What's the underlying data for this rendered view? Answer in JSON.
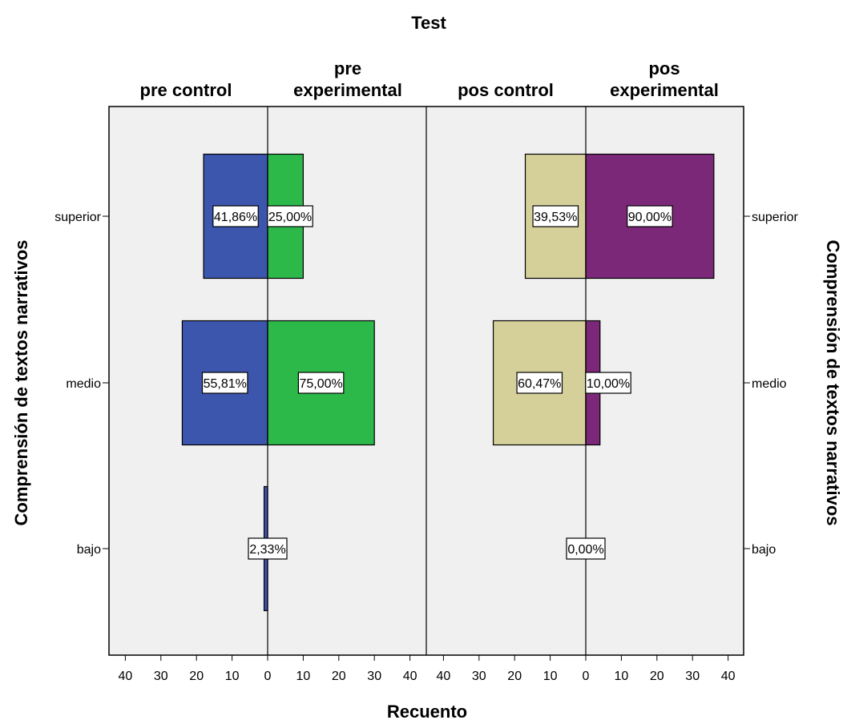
{
  "chart_data": {
    "type": "bar",
    "title": "Test",
    "xlabel": "Recuento",
    "ylabel": "Comprensión de textos narrativos",
    "categories": [
      "superior",
      "medio",
      "bajo"
    ],
    "xlim": [
      0,
      40
    ],
    "xticks": [
      "40",
      "30",
      "20",
      "10",
      "0",
      "10",
      "20",
      "30",
      "40"
    ],
    "grid": false,
    "panels": [
      {
        "left": {
          "name": "pre control",
          "color": "#3c55ad",
          "values": [
            18,
            24,
            1
          ],
          "labels": [
            "41,86%",
            "55,81%",
            "2,33%"
          ]
        },
        "right": {
          "name": "pre experimental",
          "color": "#2db84a",
          "values": [
            10,
            30,
            0
          ],
          "labels": [
            "25,00%",
            "75,00%",
            ""
          ]
        }
      },
      {
        "left": {
          "name": "pos control",
          "color": "#d5d09a",
          "values": [
            17,
            26,
            0
          ],
          "labels": [
            "39,53%",
            "60,47%",
            "0,00%"
          ]
        },
        "right": {
          "name": "pos experimental",
          "color": "#7b2879",
          "values": [
            36,
            4,
            0
          ],
          "labels": [
            "90,00%",
            "10,00%",
            ""
          ]
        }
      }
    ],
    "panel_headers": [
      {
        "left": [
          "pre control"
        ],
        "right": [
          "pre",
          "experimental"
        ]
      },
      {
        "left": [
          "pos control"
        ],
        "right": [
          "pos",
          "experimental"
        ]
      }
    ],
    "colors": {
      "plot_background": "#f0f0f0",
      "frame": "#000000"
    }
  }
}
